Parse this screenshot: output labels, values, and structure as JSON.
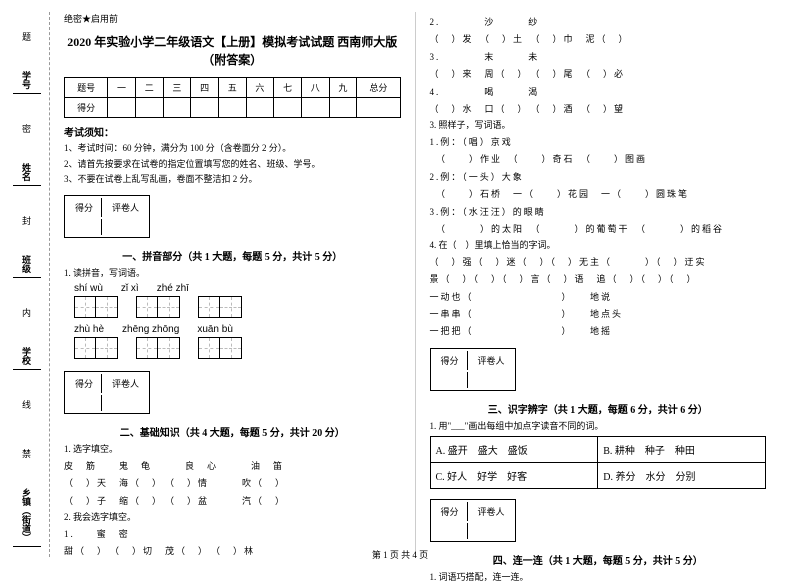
{
  "secret": "绝密★启用前",
  "title": "2020 年实验小学二年级语文【上册】模拟考试试题 西南师大版（附答案）",
  "margin_labels": [
    "学号",
    "姓名",
    "班级",
    "学校",
    "乡镇（街道）"
  ],
  "margin_marks": [
    "题",
    "密",
    "封",
    "内",
    "线",
    "禁"
  ],
  "score_headers": [
    "题号",
    "一",
    "二",
    "三",
    "四",
    "五",
    "六",
    "七",
    "八",
    "九",
    "总分"
  ],
  "score_row": "得分",
  "notice_h": "考试须知：",
  "notices": [
    "1、考试时间：60 分钟，满分为 100 分（含卷面分 2 分）。",
    "2、请首先按要求在试卷的指定位置填写您的姓名、班级、学号。",
    "3、不要在试卷上乱写乱画，卷面不整洁扣 2 分。"
  ],
  "scorebox": [
    "得分",
    "评卷人"
  ],
  "sections": {
    "s1": "一、拼音部分（共 1 大题，每题 5 分，共计 5 分）",
    "s2": "二、基础知识（共 4 大题，每题 5 分，共计 20 分）",
    "s3": "三、识字辨字（共 1 大题，每题 6 分，共计 6 分）",
    "s4": "四、连一连（共 1 大题，每题 5 分，共计 5 分）"
  },
  "q1": "1. 读拼音，写词语。",
  "pinyin": {
    "row1": [
      "shí  wù",
      "zǐ xì",
      "zhé  zhī"
    ],
    "row2": [
      "zhù  hè",
      "zhēng zhōng",
      "xuān  bù"
    ]
  },
  "q2_1": "1. 选字填空。",
  "q2_1_lines": [
    "皮　筋　　鬼　龟　　　良　心　　　油　笛",
    "（　）天　海（　）　（　）情　　　吹（　）",
    "（　）子　缩（　）　（　）盆　　　汽（　）"
  ],
  "q2_2": "2. 我会选字填空。",
  "q2_2_lines": [
    "1.　　蜜　密",
    "甜（　）　（　）切　茂（　）　（　）林"
  ],
  "right_lines": [
    "2.　　　　沙　　　纱",
    "（　）发　（　）土　（　）巾　泥（　）",
    "3.　　　　末　　　未",
    "（　）来　周（　）　（　）尾　（　）必",
    "4.　　　　喝　　　渴",
    "（　）水　口（　）　（　）酒　（　）望"
  ],
  "q3": "3. 照样子，写词语。",
  "q3_lines": [
    "1.例：（唱）京戏",
    "　（　　）作业　（　　）奇石　（　　）图画",
    "2.例：（一头）大象",
    "　（　　）石桥　一（　　）花园　一（　　）圆珠笔",
    "3.例：（水汪汪）的眼睛",
    "　（　　　）的太阳　（　　　）的葡萄干　（　　　）的稻谷"
  ],
  "q4": "4. 在（　）里填上恰当的字词。",
  "q4_lines": [
    "（　）强（　）迷（　）（　）无主（　　　）（　）迂实",
    "景（　）（　）（　）言（　）语　追（　）（　）（　）",
    "一动也（　　　　　　　　）　　地说",
    "一串串（　　　　　　　　）　　地点头",
    "一把把（　　　　　　　　）　　地摇"
  ],
  "q_s3": "1. 用\"___\"画出每组中加点字读音不同的词。",
  "word_rows": [
    [
      "A. 盛开　盛大　盛饭",
      "B. 耕种　种子　种田"
    ],
    [
      "C. 好人　好学　好客",
      "D. 养分　水分　分别"
    ]
  ],
  "q_s4": "1. 词语巧搭配，连一连。",
  "footer": "第 1 页 共 4 页"
}
